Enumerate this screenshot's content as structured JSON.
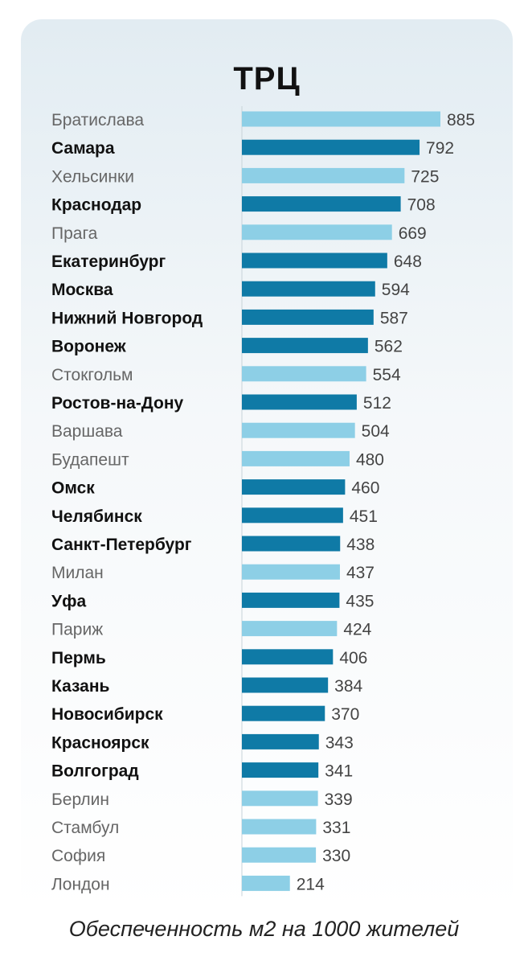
{
  "chart_data": {
    "type": "bar",
    "orientation": "horizontal",
    "title": "ТРЦ",
    "footnote": "Обеспеченность м2 на 1000 жителей",
    "xlim": [
      0,
      885
    ],
    "colors": {
      "russia": "#0f7aa6",
      "other": "#8dcfe6"
    },
    "categories": [
      "Братислава",
      "Самара",
      "Хельсинки",
      "Краснодар",
      "Прага",
      "Екатеринбург",
      "Москва",
      "Нижний Новгород",
      "Воронеж",
      "Стокгольм",
      "Ростов-на-Дону",
      "Варшава",
      "Будапешт",
      "Омск",
      "Челябинск",
      "Санкт-Петербург",
      "Милан",
      "Уфа",
      "Париж",
      "Пермь",
      "Казань",
      "Новосибирск",
      "Красноярск",
      "Волгоград",
      "Берлин",
      "Стамбул",
      "София",
      "Лондон"
    ],
    "values": [
      885,
      792,
      725,
      708,
      669,
      648,
      594,
      587,
      562,
      554,
      512,
      504,
      480,
      460,
      451,
      438,
      437,
      435,
      424,
      406,
      384,
      370,
      343,
      341,
      339,
      331,
      330,
      214
    ],
    "russian": [
      false,
      true,
      false,
      true,
      false,
      true,
      true,
      true,
      true,
      false,
      true,
      false,
      false,
      true,
      true,
      true,
      false,
      true,
      false,
      true,
      true,
      true,
      true,
      true,
      false,
      false,
      false,
      false
    ]
  }
}
